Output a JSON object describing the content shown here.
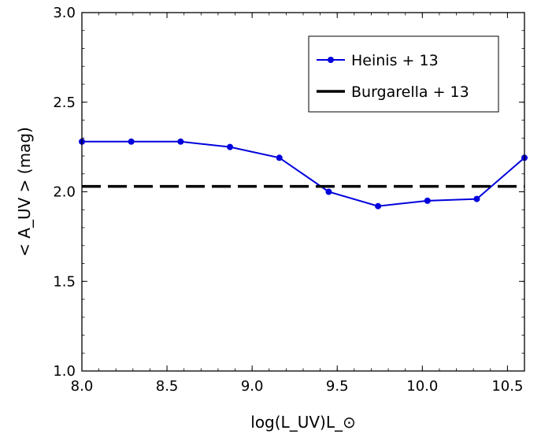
{
  "chart_data": {
    "type": "line",
    "xlabel": "log(L_UV)L_⊙",
    "ylabel": "< A_UV > (mag)",
    "xlim": [
      8.0,
      10.6
    ],
    "ylim": [
      1.0,
      3.0
    ],
    "x_ticks": [
      8.0,
      8.5,
      9.0,
      9.5,
      10.0,
      10.5
    ],
    "x_tick_labels": [
      "8.0",
      "8.5",
      "9.0",
      "9.5",
      "10.0",
      "10.5"
    ],
    "y_ticks": [
      1.0,
      1.5,
      2.0,
      2.5,
      3.0
    ],
    "y_tick_labels": [
      "1.0",
      "1.5",
      "2.0",
      "2.5",
      "3.0"
    ],
    "grid": false,
    "legend_placement": "top-right",
    "series": [
      {
        "name": "Heinis + 13",
        "color": "#0000dd",
        "style": "line-markers",
        "x": [
          8.0,
          8.29,
          8.58,
          8.87,
          9.16,
          9.45,
          9.74,
          10.03,
          10.32,
          10.6
        ],
        "y": [
          2.28,
          2.28,
          2.28,
          2.25,
          2.19,
          2.0,
          1.92,
          1.95,
          1.96,
          2.19
        ]
      },
      {
        "name": "Burgarella + 13",
        "color": "#000000",
        "style": "dashed",
        "x": [
          8.0,
          10.6
        ],
        "y": [
          2.03,
          2.03
        ]
      }
    ]
  }
}
